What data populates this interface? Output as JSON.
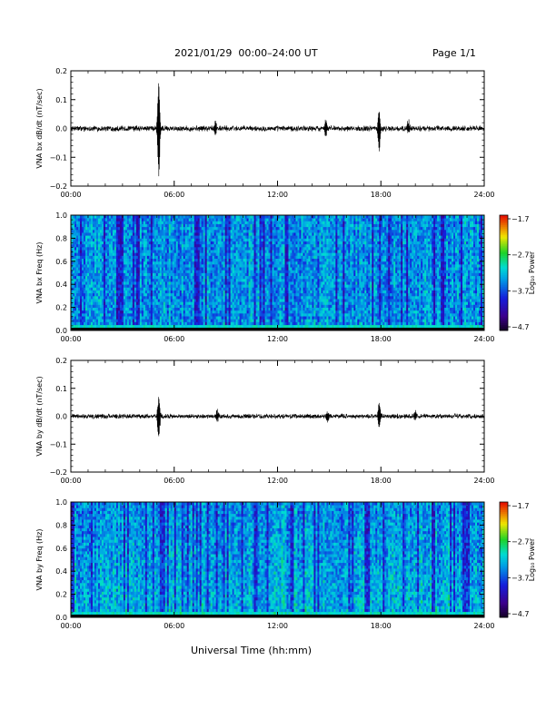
{
  "header": {
    "title": "2021/01/29  00:00–24:00 UT",
    "page": "Page 1/1"
  },
  "xaxis_title": "Universal Time (hh:mm)",
  "chart_data": [
    {
      "type": "line",
      "ylabel": "VNA bx dB/dt (nT/sec)",
      "xlim": [
        0,
        24
      ],
      "ylim": [
        -0.2,
        0.2
      ],
      "x_ticks": [
        "00:00",
        "06:00",
        "12:00",
        "18:00",
        "24:00"
      ],
      "y_ticks": [
        "−0.2",
        "−0.1",
        "0.0",
        "0.1",
        "0.2"
      ],
      "noise_amplitude": 0.008,
      "events": [
        {
          "t": 5.1,
          "max": 0.16,
          "min": -0.18
        },
        {
          "t": 8.4,
          "max": 0.03,
          "min": -0.02
        },
        {
          "t": 14.8,
          "max": 0.03,
          "min": -0.03
        },
        {
          "t": 17.9,
          "max": 0.07,
          "min": -0.08
        },
        {
          "t": 19.6,
          "max": 0.03,
          "min": -0.02
        }
      ]
    },
    {
      "type": "heatmap",
      "ylabel": "VNA bx Freq (Hz)",
      "xlim": [
        0,
        24
      ],
      "ylim": [
        0,
        1.0
      ],
      "x_ticks": [
        "00:00",
        "06:00",
        "12:00",
        "18:00",
        "24:00"
      ],
      "y_ticks": [
        "0.0",
        "0.2",
        "0.4",
        "0.6",
        "0.8",
        "1.0"
      ],
      "colorbar_label": "Log₁₀ Power",
      "colorbar_ticks": [
        "−1.7",
        "−2.7",
        "−3.7",
        "−4.7"
      ],
      "colorbar_range": [
        -4.7,
        -1.7
      ]
    },
    {
      "type": "line",
      "ylabel": "VNA by dB/dt (nT/sec)",
      "xlim": [
        0,
        24
      ],
      "ylim": [
        -0.2,
        0.2
      ],
      "x_ticks": [
        "00:00",
        "06:00",
        "12:00",
        "18:00",
        "24:00"
      ],
      "y_ticks": [
        "−0.2",
        "−0.1",
        "0.0",
        "0.1",
        "0.2"
      ],
      "noise_amplitude": 0.007,
      "events": [
        {
          "t": 5.1,
          "max": 0.08,
          "min": -0.1
        },
        {
          "t": 8.5,
          "max": 0.02,
          "min": -0.02
        },
        {
          "t": 14.9,
          "max": 0.02,
          "min": -0.02
        },
        {
          "t": 17.9,
          "max": 0.05,
          "min": -0.04
        },
        {
          "t": 20.0,
          "max": 0.02,
          "min": -0.02
        }
      ]
    },
    {
      "type": "heatmap",
      "ylabel": "VNA by Freq (Hz)",
      "xlim": [
        0,
        24
      ],
      "ylim": [
        0,
        1.0
      ],
      "x_ticks": [
        "00:00",
        "06:00",
        "12:00",
        "18:00",
        "24:00"
      ],
      "y_ticks": [
        "0.0",
        "0.2",
        "0.4",
        "0.6",
        "0.8",
        "1.0"
      ],
      "colorbar_label": "Log₁₀ Power",
      "colorbar_ticks": [
        "−1.7",
        "−2.7",
        "−3.7",
        "−4.7"
      ],
      "colorbar_range": [
        -4.7,
        -1.7
      ]
    }
  ]
}
